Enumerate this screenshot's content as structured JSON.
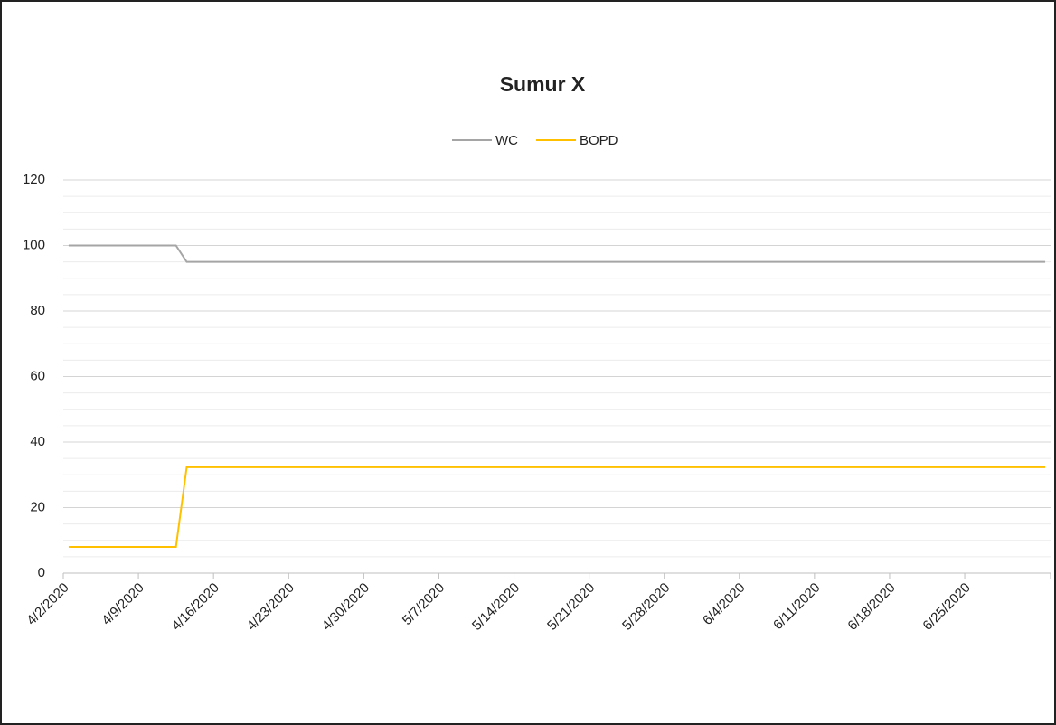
{
  "chart_data": {
    "type": "line",
    "title": "Sumur X",
    "x": [
      "4/2/2020",
      "4/3/2020",
      "4/4/2020",
      "4/5/2020",
      "4/6/2020",
      "4/7/2020",
      "4/8/2020",
      "4/9/2020",
      "4/10/2020",
      "4/11/2020",
      "4/12/2020",
      "4/13/2020",
      "4/14/2020",
      "4/15/2020",
      "4/16/2020",
      "4/17/2020",
      "4/18/2020",
      "4/19/2020",
      "4/20/2020",
      "4/21/2020",
      "4/22/2020",
      "4/23/2020",
      "4/24/2020",
      "4/25/2020",
      "4/26/2020",
      "4/27/2020",
      "4/28/2020",
      "4/29/2020",
      "4/30/2020",
      "5/1/2020",
      "5/2/2020",
      "5/3/2020",
      "5/4/2020",
      "5/5/2020",
      "5/6/2020",
      "5/7/2020",
      "5/8/2020",
      "5/9/2020",
      "5/10/2020",
      "5/11/2020",
      "5/12/2020",
      "5/13/2020",
      "5/14/2020",
      "5/15/2020",
      "5/16/2020",
      "5/17/2020",
      "5/18/2020",
      "5/19/2020",
      "5/20/2020",
      "5/21/2020",
      "5/22/2020",
      "5/23/2020",
      "5/24/2020",
      "5/25/2020",
      "5/26/2020",
      "5/27/2020",
      "5/28/2020",
      "5/29/2020",
      "5/30/2020",
      "5/31/2020",
      "6/1/2020",
      "6/2/2020",
      "6/3/2020",
      "6/4/2020",
      "6/5/2020",
      "6/6/2020",
      "6/7/2020",
      "6/8/2020",
      "6/9/2020",
      "6/10/2020",
      "6/11/2020",
      "6/12/2020",
      "6/13/2020",
      "6/14/2020",
      "6/15/2020",
      "6/16/2020",
      "6/17/2020",
      "6/18/2020",
      "6/19/2020",
      "6/20/2020",
      "6/21/2020",
      "6/22/2020",
      "6/23/2020",
      "6/24/2020",
      "6/25/2020",
      "6/26/2020",
      "6/27/2020",
      "6/28/2020",
      "6/29/2020",
      "6/30/2020",
      "7/1/2020",
      "7/2/2020"
    ],
    "series": [
      {
        "name": "WC",
        "color": "#a5a5a5",
        "values": [
          100,
          100,
          100,
          100,
          100,
          100,
          100,
          100,
          100,
          100,
          100,
          95,
          95,
          95,
          95,
          95,
          95,
          95,
          95,
          95,
          95,
          95,
          95,
          95,
          95,
          95,
          95,
          95,
          95,
          95,
          95,
          95,
          95,
          95,
          95,
          95,
          95,
          95,
          95,
          95,
          95,
          95,
          95,
          95,
          95,
          95,
          95,
          95,
          95,
          95,
          95,
          95,
          95,
          95,
          95,
          95,
          95,
          95,
          95,
          95,
          95,
          95,
          95,
          95,
          95,
          95,
          95,
          95,
          95,
          95,
          95,
          95,
          95,
          95,
          95,
          95,
          95,
          95,
          95,
          95,
          95,
          95,
          95,
          95,
          95,
          95,
          95,
          95,
          95,
          95,
          95,
          95
        ]
      },
      {
        "name": "BOPD",
        "color": "#ffc000",
        "values": [
          8,
          8,
          8,
          8,
          8,
          8,
          8,
          8,
          8,
          8,
          8,
          32.3,
          32.3,
          32.3,
          32.3,
          32.3,
          32.3,
          32.3,
          32.3,
          32.3,
          32.3,
          32.3,
          32.3,
          32.3,
          32.3,
          32.3,
          32.3,
          32.3,
          32.3,
          32.3,
          32.3,
          32.3,
          32.3,
          32.3,
          32.3,
          32.3,
          32.3,
          32.3,
          32.3,
          32.3,
          32.3,
          32.3,
          32.3,
          32.3,
          32.3,
          32.3,
          32.3,
          32.3,
          32.3,
          32.3,
          32.3,
          32.3,
          32.3,
          32.3,
          32.3,
          32.3,
          32.3,
          32.3,
          32.3,
          32.3,
          32.3,
          32.3,
          32.3,
          32.3,
          32.3,
          32.3,
          32.3,
          32.3,
          32.3,
          32.3,
          32.3,
          32.3,
          32.3,
          32.3,
          32.3,
          32.3,
          32.3,
          32.3,
          32.3,
          32.3,
          32.3,
          32.3,
          32.3,
          32.3,
          32.3,
          32.3,
          32.3,
          32.3,
          32.3,
          32.3,
          32.3,
          32.3
        ]
      }
    ],
    "xticks": [
      "4/2/2020",
      "4/9/2020",
      "4/16/2020",
      "4/23/2020",
      "4/30/2020",
      "5/7/2020",
      "5/14/2020",
      "5/21/2020",
      "5/28/2020",
      "6/4/2020",
      "6/11/2020",
      "6/18/2020",
      "6/25/2020"
    ],
    "ylim": [
      0,
      120
    ],
    "yticks": [
      0,
      20,
      40,
      60,
      80,
      100,
      120
    ],
    "grid": true,
    "minor_grid": true,
    "legend": "top"
  }
}
